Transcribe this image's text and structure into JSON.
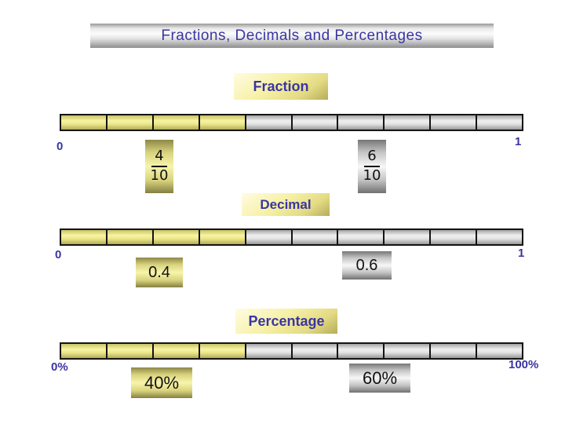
{
  "slide": {
    "title": "Fractions, Decimals and Percentages"
  },
  "colors": {
    "text_blue": "#3a35a2",
    "value_text": "#111111",
    "yellow_fill": "#f2ee9e",
    "gray_fill": "#d9d9d9"
  },
  "sections": {
    "fraction": {
      "heading": "Fraction",
      "left_label": "0",
      "right_label": "1",
      "bar": {
        "filled": 4,
        "total": 10
      },
      "yellow_marker": {
        "numerator": "4",
        "denominator": "10"
      },
      "gray_marker": {
        "numerator": "6",
        "denominator": "10"
      }
    },
    "decimal": {
      "heading": "Decimal",
      "left_label": "0",
      "right_label": "1",
      "bar": {
        "filled": 4,
        "total": 10
      },
      "yellow_marker": "0.4",
      "gray_marker": "0.6"
    },
    "percentage": {
      "heading": "Percentage",
      "left_label": "0%",
      "right_label": "100%",
      "bar": {
        "filled": 4,
        "total": 10
      },
      "yellow_marker": "40%",
      "gray_marker": "60%"
    }
  }
}
